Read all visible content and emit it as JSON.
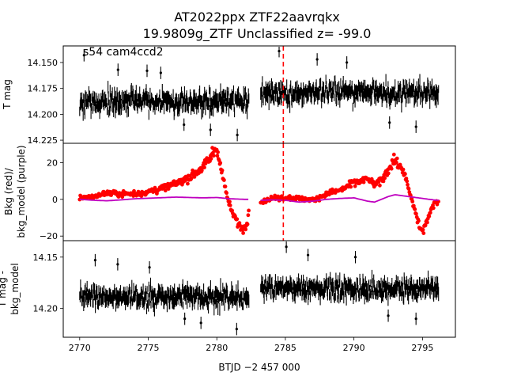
{
  "title": {
    "line1": "AT2022ppx  ZTF22aavrqkx",
    "line2": "19.9809g_ZTF Unclassified z= -99.0"
  },
  "colors": {
    "data_black": "#000000",
    "bkg_red": "#ff0000",
    "model_purple": "#bf00bf",
    "marker_line": "#ff0000"
  },
  "chart_data": [
    {
      "type": "scatter",
      "panel": "top",
      "annotation": "s54 cam4ccd2",
      "ylabel": "T mag",
      "ylim": [
        14.228,
        14.134
      ],
      "yticks": [
        14.15,
        14.175,
        14.2,
        14.225
      ],
      "ytick_labels": [
        "14.150",
        "14.175",
        "14.200",
        "14.225"
      ],
      "xlim": [
        2768.8,
        2797.4
      ],
      "marker_x": 2784.85,
      "series": [
        {
          "segment": [
            2770.0,
            2782.35
          ],
          "mean": 14.188,
          "noise": 0.008,
          "errbar": 0.006,
          "spikes": [
            14.143,
            14.157,
            14.158,
            14.16,
            14.21,
            14.215,
            14.22
          ]
        },
        {
          "segment": [
            2783.2,
            2796.2
          ],
          "mean": 14.179,
          "noise": 0.008,
          "errbar": 0.006,
          "spikes": [
            14.139,
            14.147,
            14.15,
            14.208,
            14.212
          ]
        }
      ]
    },
    {
      "type": "scatter",
      "panel": "middle",
      "ylabel": "Bkg (red)/\nbkg_model (purple)",
      "ylim": [
        -22.5,
        30.5
      ],
      "yticks": [
        -20,
        0,
        20
      ],
      "ytick_labels": [
        "−20",
        "0",
        "20"
      ],
      "xlim": [
        2768.8,
        2797.4
      ],
      "marker_x": 2784.85,
      "bkg_curve": [
        [
          2770.0,
          1.0
        ],
        [
          2771.0,
          1.5
        ],
        [
          2772.0,
          3.5
        ],
        [
          2773.0,
          3.0
        ],
        [
          2774.0,
          3.0
        ],
        [
          2775.0,
          4.0
        ],
        [
          2776.0,
          6.0
        ],
        [
          2777.0,
          8.5
        ],
        [
          2778.0,
          12.0
        ],
        [
          2779.0,
          17.5
        ],
        [
          2779.5,
          22.0
        ],
        [
          2779.9,
          28.0
        ],
        [
          2780.2,
          22.0
        ],
        [
          2780.5,
          10.0
        ],
        [
          2780.8,
          0.0
        ],
        [
          2781.1,
          -7.0
        ],
        [
          2781.4,
          -11.0
        ],
        [
          2781.7,
          -15.0
        ],
        [
          2782.0,
          -16.0
        ],
        [
          2782.2,
          -13.0
        ],
        [
          2782.35,
          -3.0
        ],
        [
          2783.2,
          -1.5
        ],
        [
          2784.0,
          0.5
        ],
        [
          2785.0,
          1.0
        ],
        [
          2786.0,
          0.5
        ],
        [
          2787.0,
          -0.5
        ],
        [
          2788.0,
          3.0
        ],
        [
          2789.0,
          5.0
        ],
        [
          2790.0,
          9.0
        ],
        [
          2791.0,
          11.0
        ],
        [
          2791.5,
          8.0
        ],
        [
          2792.0,
          10.0
        ],
        [
          2792.5,
          16.0
        ],
        [
          2792.9,
          22.0
        ],
        [
          2793.3,
          18.0
        ],
        [
          2793.6,
          16.0
        ],
        [
          2794.0,
          5.0
        ],
        [
          2794.4,
          -5.0
        ],
        [
          2794.8,
          -15.0
        ],
        [
          2795.0,
          -18.0
        ],
        [
          2795.3,
          -12.0
        ],
        [
          2795.7,
          -5.0
        ],
        [
          2796.0,
          -1.0
        ],
        [
          2796.2,
          -1.0
        ]
      ],
      "model_curve": [
        [
          2770.0,
          0.0
        ],
        [
          2771.0,
          -0.5
        ],
        [
          2772.0,
          -0.8
        ],
        [
          2773.0,
          -0.3
        ],
        [
          2774.0,
          0.3
        ],
        [
          2775.0,
          0.6
        ],
        [
          2776.0,
          0.9
        ],
        [
          2777.0,
          1.2
        ],
        [
          2778.0,
          1.0
        ],
        [
          2779.0,
          0.8
        ],
        [
          2780.0,
          1.0
        ],
        [
          2781.0,
          0.3
        ],
        [
          2782.0,
          0.0
        ],
        [
          2782.35,
          0.0
        ],
        [
          2783.2,
          -0.5
        ],
        [
          2784.0,
          -0.3
        ],
        [
          2785.0,
          -0.5
        ],
        [
          2786.0,
          -1.5
        ],
        [
          2787.0,
          -1.0
        ],
        [
          2788.0,
          0.0
        ],
        [
          2789.0,
          0.5
        ],
        [
          2790.0,
          0.8
        ],
        [
          2791.0,
          -1.0
        ],
        [
          2791.5,
          -1.5
        ],
        [
          2792.0,
          0.0
        ],
        [
          2792.5,
          1.5
        ],
        [
          2793.0,
          2.5
        ],
        [
          2794.0,
          1.5
        ],
        [
          2795.0,
          0.5
        ],
        [
          2796.0,
          -0.5
        ],
        [
          2796.2,
          -0.5
        ]
      ]
    },
    {
      "type": "scatter",
      "panel": "bottom",
      "ylabel": "T mag -\nbkg_model",
      "ylim": [
        14.228,
        14.134
      ],
      "yticks": [
        14.15,
        14.2
      ],
      "ytick_labels": [
        "14.15",
        "14.20"
      ],
      "xlabel": "BTJD −2 457 000",
      "xlim": [
        2768.8,
        2797.4
      ],
      "xticks": [
        2770,
        2775,
        2780,
        2785,
        2790,
        2795
      ],
      "xtick_labels": [
        "2770",
        "2775",
        "2780",
        "2785",
        "2790",
        "2795"
      ],
      "series": [
        {
          "segment": [
            2770.0,
            2782.35
          ],
          "mean": 14.189,
          "noise": 0.008,
          "errbar": 0.006,
          "spikes": [
            14.153,
            14.157,
            14.16,
            14.21,
            14.214,
            14.22
          ]
        },
        {
          "segment": [
            2783.2,
            2796.2
          ],
          "mean": 14.181,
          "noise": 0.008,
          "errbar": 0.006,
          "spikes": [
            14.14,
            14.148,
            14.15,
            14.207,
            14.21
          ]
        }
      ]
    }
  ]
}
